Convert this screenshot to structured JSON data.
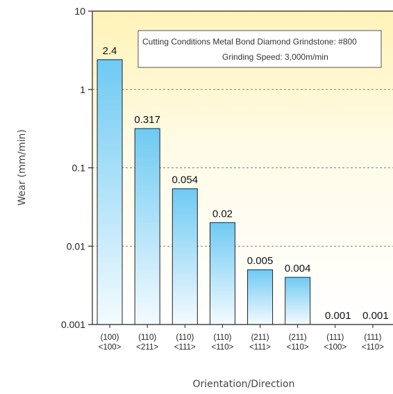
{
  "chart_data": {
    "type": "bar",
    "scale": "log",
    "ylim": [
      0.001,
      10
    ],
    "yticks": [
      "10",
      "1",
      "0.1",
      "0.01",
      "0.001"
    ],
    "ytick_values": [
      10,
      1,
      0.1,
      0.01,
      0.001
    ],
    "categories": [
      {
        "orientation": "(100)",
        "direction": "<100>"
      },
      {
        "orientation": "(110)",
        "direction": "<211>"
      },
      {
        "orientation": "(110)",
        "direction": "<111>"
      },
      {
        "orientation": "(110)",
        "direction": "<110>"
      },
      {
        "orientation": "(211)",
        "direction": "<111>"
      },
      {
        "orientation": "(211)",
        "direction": "<110>"
      },
      {
        "orientation": "(111)",
        "direction": "<100>"
      },
      {
        "orientation": "(111)",
        "direction": "<110>"
      }
    ],
    "values": [
      2.4,
      0.317,
      0.054,
      0.02,
      0.005,
      0.004,
      0.001,
      0.001
    ],
    "value_labels": [
      "2.4",
      "0.317",
      "0.054",
      "0.02",
      "0.005",
      "0.004",
      "0.001",
      "0.001"
    ],
    "xlabel": "Orientation/Direction",
    "ylabel": "Wear (mm/min)",
    "legend": {
      "line1": "Cutting Conditions  Metal Bond Diamond Grindstone: #800",
      "line2": "Grinding Speed: 3,000m/min",
      "placement": "top-right"
    },
    "grid": "dashed horizontal",
    "colors": {
      "bar_top": "#6fcaf3",
      "bar_bottom": "#f4fbff",
      "bar_stroke": "#222222",
      "plot_bg_top": "#fff3b8",
      "plot_bg_bottom": "#ffffff"
    }
  }
}
